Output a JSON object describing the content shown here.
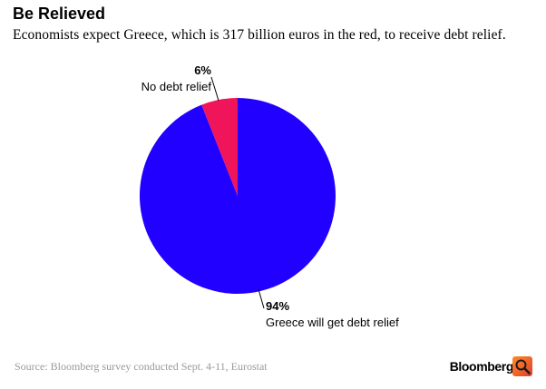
{
  "header": {
    "title": "Be Relieved",
    "subtitle": "Economists expect Greece, which is 317 billion euros in the red, to receive debt relief."
  },
  "footer": {
    "source": "Source: Bloomberg survey conducted Sept. 4-11, Eurostat",
    "brand": "Bloomberg",
    "brand_icon": "magnifier-icon"
  },
  "chart_data": {
    "type": "pie",
    "slices": [
      {
        "label": "No debt relief",
        "value": 6,
        "value_label": "6%",
        "color": "#f0145a"
      },
      {
        "label": "Greece will get debt relief",
        "value": 94,
        "value_label": "94%",
        "color": "#2200ff"
      }
    ],
    "start": "top, clockwise from the larger slice"
  }
}
